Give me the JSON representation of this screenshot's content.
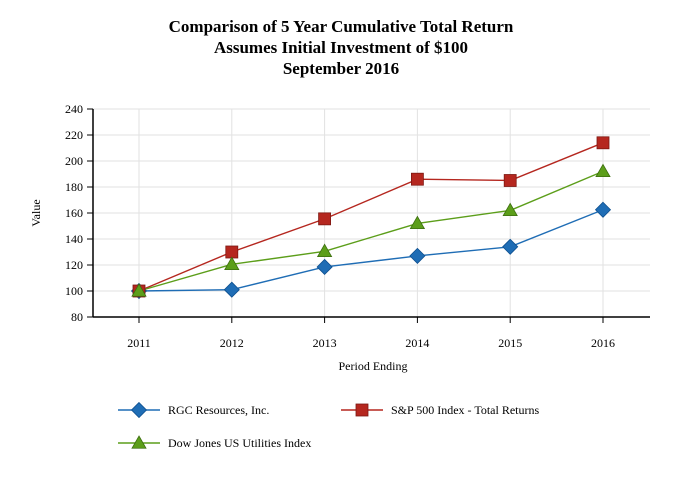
{
  "chart_data": {
    "type": "line",
    "title": [
      "Comparison of 5 Year Cumulative Total Return",
      "Assumes Initial Investment of $100",
      "September 2016"
    ],
    "xlabel": "Period Ending",
    "ylabel": "Value",
    "categories": [
      "2011",
      "2012",
      "2013",
      "2014",
      "2015",
      "2016"
    ],
    "ylim": [
      80,
      240
    ],
    "yticks": [
      80,
      100,
      120,
      140,
      160,
      180,
      200,
      220,
      240
    ],
    "grid": true,
    "series": [
      {
        "name": "RGC Resources, Inc.",
        "color": "#1f6db5",
        "marker": "diamond",
        "values": [
          100,
          101,
          118.5,
          127,
          134,
          162.5
        ]
      },
      {
        "name": "S&P 500 Index - Total Returns",
        "color": "#b5271f",
        "marker": "square",
        "values": [
          100,
          130,
          155.5,
          186,
          185,
          214
        ]
      },
      {
        "name": "Dow Jones US Utilities Index",
        "color": "#5c9e1a",
        "marker": "triangle",
        "values": [
          100,
          120.5,
          130.5,
          152,
          162,
          192
        ]
      }
    ]
  }
}
